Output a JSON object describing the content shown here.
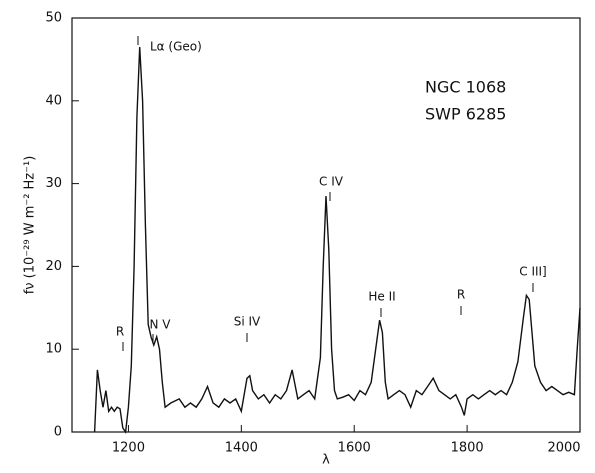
{
  "chart_data": {
    "type": "line",
    "title_lines": [
      "NGC 1068",
      "SWP 6285"
    ],
    "x_label": "λ",
    "y_label": "fν (10⁻²⁹ W m⁻² Hz⁻¹)",
    "annotations": [
      "R",
      "Lα (Geo)",
      "N V",
      "Si IV",
      "C IV",
      "He II",
      "R",
      "C III]"
    ],
    "xlim": [
      1100,
      2000
    ],
    "xticks": [
      1200,
      1400,
      1600,
      1800,
      2000
    ],
    "ylim": [
      0,
      50
    ],
    "yticks": [
      0,
      10,
      20,
      30,
      40,
      50
    ],
    "color": "#111111",
    "x": [
      1140,
      1145,
      1150,
      1155,
      1160,
      1165,
      1170,
      1175,
      1180,
      1185,
      1190,
      1195,
      1200,
      1205,
      1210,
      1215,
      1220,
      1225,
      1230,
      1235,
      1240,
      1245,
      1250,
      1255,
      1260,
      1265,
      1275,
      1290,
      1300,
      1310,
      1320,
      1330,
      1340,
      1350,
      1360,
      1370,
      1380,
      1390,
      1400,
      1410,
      1415,
      1420,
      1430,
      1440,
      1450,
      1460,
      1470,
      1480,
      1490,
      1500,
      1510,
      1520,
      1530,
      1540,
      1545,
      1550,
      1555,
      1560,
      1565,
      1570,
      1580,
      1590,
      1600,
      1610,
      1620,
      1630,
      1640,
      1645,
      1650,
      1655,
      1660,
      1670,
      1680,
      1690,
      1700,
      1710,
      1720,
      1730,
      1740,
      1750,
      1760,
      1770,
      1780,
      1790,
      1795,
      1800,
      1810,
      1820,
      1830,
      1840,
      1850,
      1860,
      1870,
      1880,
      1890,
      1900,
      1905,
      1910,
      1915,
      1920,
      1930,
      1940,
      1950,
      1960,
      1970,
      1980,
      1990,
      1995,
      2000
    ],
    "values": [
      0,
      7.5,
      5,
      3,
      5,
      2.5,
      3,
      2.5,
      3,
      2.8,
      0.5,
      0,
      3,
      8,
      20,
      38,
      46.5,
      40,
      25,
      13,
      11.5,
      10.5,
      11.5,
      10,
      6,
      3,
      3.5,
      4,
      3,
      3.5,
      3,
      4,
      5.5,
      3.5,
      3,
      4,
      3.5,
      4,
      2.5,
      6.5,
      6.8,
      5,
      4,
      4.5,
      3.5,
      4.5,
      4,
      5,
      7.5,
      4,
      4.5,
      5,
      4,
      9,
      20,
      28.5,
      22,
      10,
      5,
      4,
      4.2,
      4.5,
      3.8,
      5,
      4.5,
      6,
      11,
      13.5,
      12,
      6,
      4,
      4.5,
      5,
      4.5,
      3,
      5,
      4.5,
      5.5,
      6.5,
      5,
      4.5,
      4,
      4.5,
      3,
      2,
      4,
      4.5,
      4,
      4.5,
      5,
      4.5,
      5,
      4.5,
      6,
      8.5,
      14,
      16.5,
      16,
      12,
      8,
      6,
      5,
      5.5,
      5,
      4.5,
      4.8,
      4.5,
      10,
      15
    ]
  }
}
